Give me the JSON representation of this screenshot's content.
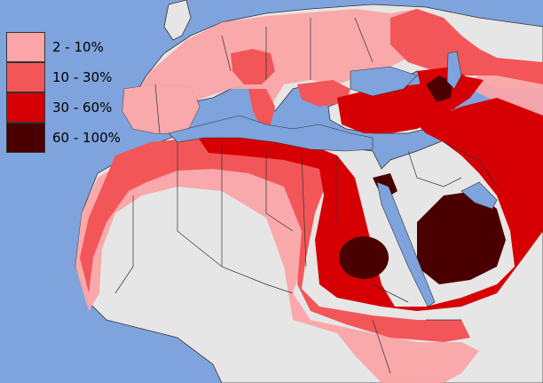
{
  "legend": {
    "items": [
      {
        "label": "2 - 10%",
        "color": "#fba5a8"
      },
      {
        "label": "10 - 30%",
        "color": "#f25658"
      },
      {
        "label": "30 - 60%",
        "color": "#d60004"
      },
      {
        "label": "60 - 100%",
        "color": "#4a0000"
      }
    ]
  },
  "colors": {
    "sea": "#7fa3dc",
    "land_no_data": "#e6e6e6",
    "border": "#333333"
  }
}
